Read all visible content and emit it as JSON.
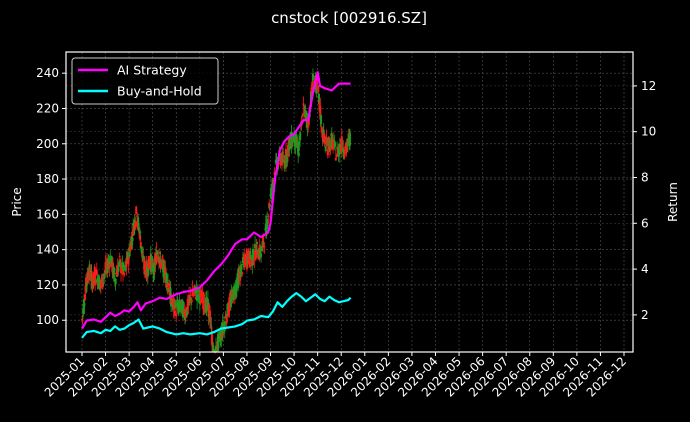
{
  "chart_data": {
    "type": "line",
    "title": "cnstock [002916.SZ]",
    "xlabel": "",
    "ylabel": "Price",
    "y2label": "Return",
    "ylim": [
      82,
      252
    ],
    "y2lim": [
      0.38,
      13.48
    ],
    "grid": true,
    "legend_position": "upper left",
    "x_ticks": [
      "2025-01",
      "2025-02",
      "2025-03",
      "2025-04",
      "2025-05",
      "2025-06",
      "2025-07",
      "2025-08",
      "2025-09",
      "2025-10",
      "2025-11",
      "2025-12",
      "2026-01",
      "2026-02",
      "2026-03",
      "2026-04",
      "2026-05",
      "2026-06",
      "2026-07",
      "2026-08",
      "2026-09",
      "2026-10",
      "2026-11",
      "2026-12"
    ],
    "y_ticks": [
      100,
      120,
      140,
      160,
      180,
      200,
      220,
      240
    ],
    "y2_ticks": [
      2,
      4,
      6,
      8,
      10,
      12
    ],
    "legend": [
      {
        "label": "AI Strategy",
        "color": "#ff00ff"
      },
      {
        "label": "Buy-and-Hold",
        "color": "#00ffff"
      }
    ],
    "price_candles_note": "Daily OHLC candlesticks in red (up) and green (down), approximate closes by month fraction",
    "price": {
      "x_month_index": [
        0.0,
        0.15,
        0.3,
        0.45,
        0.6,
        0.8,
        1.0,
        1.2,
        1.4,
        1.6,
        1.8,
        2.0,
        2.15,
        2.3,
        2.45,
        2.6,
        2.75,
        2.9,
        3.05,
        3.2,
        3.35,
        3.5,
        3.65,
        3.8,
        4.0,
        4.2,
        4.4,
        4.6,
        4.8,
        5.0,
        5.2,
        5.4,
        5.6,
        5.8,
        6.0,
        6.2,
        6.4,
        6.6,
        6.8,
        7.0,
        7.2,
        7.4,
        7.6,
        7.8,
        8.0,
        8.2,
        8.4,
        8.6,
        8.8,
        9.0,
        9.2,
        9.4,
        9.6,
        9.8,
        10.0,
        10.2,
        10.4,
        10.6,
        10.8,
        11.0,
        11.2,
        11.4
      ],
      "close": [
        100,
        118,
        128,
        122,
        126,
        120,
        128,
        135,
        124,
        132,
        126,
        138,
        150,
        160,
        150,
        132,
        128,
        134,
        128,
        140,
        132,
        128,
        122,
        110,
        106,
        108,
        104,
        112,
        116,
        114,
        110,
        106,
        78,
        88,
        96,
        106,
        114,
        122,
        130,
        136,
        134,
        140,
        138,
        150,
        170,
        186,
        192,
        190,
        200,
        204,
        196,
        220,
        212,
        236,
        232,
        206,
        198,
        202,
        194,
        200,
        196,
        205
      ]
    },
    "series": [
      {
        "name": "AI Strategy",
        "axis": "right",
        "x_month_index": [
          0.0,
          0.2,
          0.5,
          0.8,
          1.0,
          1.2,
          1.4,
          1.6,
          1.8,
          2.0,
          2.2,
          2.35,
          2.5,
          2.7,
          3.0,
          3.3,
          3.6,
          4.0,
          4.3,
          4.6,
          5.0,
          5.3,
          5.6,
          5.9,
          6.2,
          6.5,
          6.8,
          7.0,
          7.3,
          7.6,
          7.9,
          8.0,
          8.2,
          8.4,
          8.6,
          8.8,
          9.0,
          9.2,
          9.4,
          9.6,
          9.8,
          10.0,
          10.1,
          10.3,
          10.6,
          10.9,
          11.2,
          11.4
        ],
        "values": [
          1.4,
          1.75,
          1.8,
          1.7,
          1.9,
          2.1,
          1.95,
          2.05,
          2.2,
          2.15,
          2.35,
          2.55,
          2.2,
          2.5,
          2.6,
          2.75,
          2.7,
          2.9,
          3.0,
          3.05,
          3.2,
          3.5,
          3.9,
          4.2,
          4.6,
          5.1,
          5.3,
          5.3,
          5.6,
          5.4,
          5.6,
          6.0,
          8.0,
          9.2,
          9.6,
          9.8,
          9.9,
          10.2,
          10.5,
          10.5,
          11.7,
          12.6,
          12.0,
          11.9,
          11.8,
          12.1,
          12.1,
          12.1
        ]
      },
      {
        "name": "Buy-and-Hold",
        "axis": "right",
        "x_month_index": [
          0.0,
          0.2,
          0.5,
          0.8,
          1.0,
          1.2,
          1.4,
          1.6,
          1.8,
          2.0,
          2.2,
          2.4,
          2.6,
          2.8,
          3.0,
          3.3,
          3.6,
          4.0,
          4.3,
          4.6,
          5.0,
          5.3,
          5.6,
          5.9,
          6.2,
          6.5,
          6.8,
          7.0,
          7.3,
          7.6,
          7.9,
          8.1,
          8.3,
          8.5,
          8.7,
          8.9,
          9.1,
          9.3,
          9.5,
          9.7,
          9.9,
          10.1,
          10.3,
          10.5,
          10.7,
          10.9,
          11.1,
          11.3,
          11.4
        ],
        "values": [
          1.0,
          1.25,
          1.3,
          1.2,
          1.35,
          1.3,
          1.5,
          1.35,
          1.4,
          1.55,
          1.65,
          1.8,
          1.4,
          1.45,
          1.5,
          1.4,
          1.25,
          1.15,
          1.2,
          1.15,
          1.2,
          1.15,
          1.25,
          1.4,
          1.45,
          1.5,
          1.6,
          1.75,
          1.8,
          1.95,
          1.9,
          2.15,
          2.55,
          2.35,
          2.6,
          2.8,
          2.95,
          2.8,
          2.6,
          2.75,
          2.9,
          2.7,
          2.6,
          2.8,
          2.65,
          2.55,
          2.6,
          2.65,
          2.75
        ]
      }
    ]
  }
}
